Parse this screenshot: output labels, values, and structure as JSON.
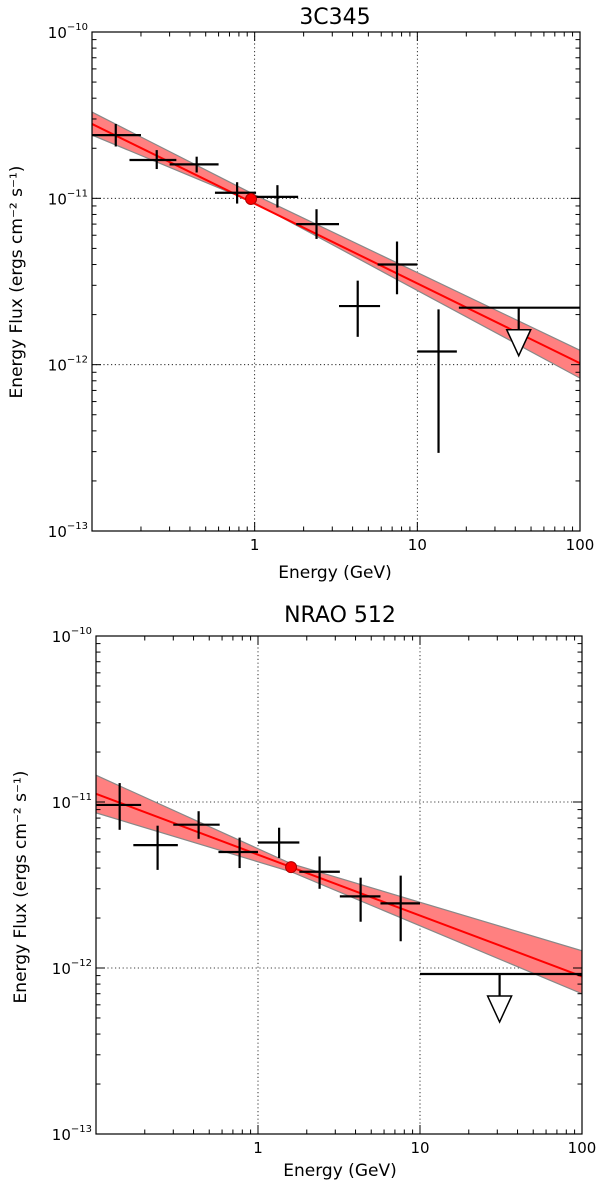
{
  "chart_data": [
    {
      "type": "scatter",
      "title": "3C345",
      "xlabel": "Energy (GeV)",
      "ylabel": "Energy Flux (ergs cm⁻² s⁻¹)",
      "xscale": "log",
      "yscale": "log",
      "xlim": [
        0.1,
        100
      ],
      "ylim": [
        1e-13,
        1e-10
      ],
      "grid": "dotted at decades",
      "x_ticks": [
        {
          "value": 1,
          "label": "1"
        },
        {
          "value": 10,
          "label": "10"
        },
        {
          "value": 100,
          "label": "100"
        }
      ],
      "y_ticks": [
        {
          "value": 1e-10,
          "base": "10",
          "exp": "−10"
        },
        {
          "value": 1e-11,
          "base": "10",
          "exp": "−11"
        },
        {
          "value": 1e-12,
          "base": "10",
          "exp": "−12"
        },
        {
          "value": 1e-13,
          "base": "10",
          "exp": "−13"
        }
      ],
      "model": {
        "type": "power-law",
        "color": "#ff0000",
        "band_color": "#ff8080",
        "line": [
          {
            "x": 0.1,
            "y": 2.8e-11
          },
          {
            "x": 100,
            "y": 1.02e-12
          }
        ],
        "band_upper": [
          {
            "x": 0.1,
            "y": 3.3e-11
          },
          {
            "x": 1,
            "y": 1.05e-11
          },
          {
            "x": 100,
            "y": 1.22e-12
          }
        ],
        "band_lower": [
          {
            "x": 0.1,
            "y": 2.4e-11
          },
          {
            "x": 1,
            "y": 9.4e-12
          },
          {
            "x": 100,
            "y": 8.3e-13
          }
        ],
        "pivot": {
          "x": 0.95,
          "y": 9.9e-12
        }
      },
      "points": [
        {
          "x": 0.14,
          "y": 2.4e-11,
          "xlo": 0.1,
          "xhi": 0.2,
          "ylo": 2.05e-11,
          "yhi": 2.8e-11
        },
        {
          "x": 0.25,
          "y": 1.7e-11,
          "xlo": 0.17,
          "xhi": 0.33,
          "ylo": 1.5e-11,
          "yhi": 1.95e-11
        },
        {
          "x": 0.44,
          "y": 1.6e-11,
          "xlo": 0.3,
          "xhi": 0.6,
          "ylo": 1.43e-11,
          "yhi": 1.78e-11
        },
        {
          "x": 0.78,
          "y": 1.08e-11,
          "xlo": 0.57,
          "xhi": 1.02,
          "ylo": 9.3e-12,
          "yhi": 1.25e-11
        },
        {
          "x": 1.38,
          "y": 1.02e-11,
          "xlo": 1.0,
          "xhi": 1.85,
          "ylo": 8.8e-12,
          "yhi": 1.2e-11
        },
        {
          "x": 2.4,
          "y": 7e-12,
          "xlo": 1.8,
          "xhi": 3.3,
          "ylo": 5.7e-12,
          "yhi": 8.6e-12
        },
        {
          "x": 4.3,
          "y": 2.25e-12,
          "xlo": 3.3,
          "xhi": 5.9,
          "ylo": 1.47e-12,
          "yhi": 3.2e-12
        },
        {
          "x": 7.5,
          "y": 4e-12,
          "xlo": 5.7,
          "xhi": 10.0,
          "ylo": 2.65e-12,
          "yhi": 5.5e-12
        },
        {
          "x": 13.5,
          "y": 1.2e-12,
          "xlo": 10.0,
          "xhi": 17.5,
          "ylo": 2.95e-13,
          "yhi": 2.15e-12
        }
      ],
      "upper_limits": [
        {
          "x": 42,
          "y": 2.2e-12,
          "xlo": 18,
          "xhi": 100
        }
      ]
    },
    {
      "type": "scatter",
      "title": "NRAO 512",
      "xlabel": "Energy (GeV)",
      "ylabel": "Energy Flux (ergs cm⁻² s⁻¹)",
      "xscale": "log",
      "yscale": "log",
      "xlim": [
        0.1,
        100
      ],
      "ylim": [
        1e-13,
        1e-10
      ],
      "grid": "dotted at decades",
      "x_ticks": [
        {
          "value": 1,
          "label": "1"
        },
        {
          "value": 10,
          "label": "10"
        },
        {
          "value": 100,
          "label": "100"
        }
      ],
      "y_ticks": [
        {
          "value": 1e-10,
          "base": "10",
          "exp": "−10"
        },
        {
          "value": 1e-11,
          "base": "10",
          "exp": "−11"
        },
        {
          "value": 1e-12,
          "base": "10",
          "exp": "−12"
        },
        {
          "value": 1e-13,
          "base": "10",
          "exp": "−13"
        }
      ],
      "model": {
        "type": "power-law",
        "color": "#ff0000",
        "band_color": "#ff8080",
        "line": [
          {
            "x": 0.1,
            "y": 1.12e-11
          },
          {
            "x": 100,
            "y": 8.9e-13
          }
        ],
        "band_upper": [
          {
            "x": 0.1,
            "y": 1.45e-11
          },
          {
            "x": 1.6,
            "y": 4.25e-12
          },
          {
            "x": 100,
            "y": 1.27e-12
          }
        ],
        "band_lower": [
          {
            "x": 0.1,
            "y": 8.6e-12
          },
          {
            "x": 1.6,
            "y": 3.8e-12
          },
          {
            "x": 100,
            "y": 7e-13
          }
        ],
        "pivot": {
          "x": 1.6,
          "y": 4.05e-12
        }
      },
      "points": [
        {
          "x": 0.14,
          "y": 9.6e-12,
          "xlo": 0.1,
          "xhi": 0.19,
          "ylo": 6.8e-12,
          "yhi": 1.3e-11
        },
        {
          "x": 0.24,
          "y": 5.5e-12,
          "xlo": 0.17,
          "xhi": 0.32,
          "ylo": 3.9e-12,
          "yhi": 7.2e-12
        },
        {
          "x": 0.43,
          "y": 7.3e-12,
          "xlo": 0.3,
          "xhi": 0.58,
          "ylo": 6e-12,
          "yhi": 8.8e-12
        },
        {
          "x": 0.77,
          "y": 5e-12,
          "xlo": 0.57,
          "xhi": 1.0,
          "ylo": 4e-12,
          "yhi": 6.1e-12
        },
        {
          "x": 1.35,
          "y": 5.7e-12,
          "xlo": 1.0,
          "xhi": 1.8,
          "ylo": 4.6e-12,
          "yhi": 7e-12
        },
        {
          "x": 2.4,
          "y": 3.8e-12,
          "xlo": 1.8,
          "xhi": 3.2,
          "ylo": 3e-12,
          "yhi": 4.7e-12
        },
        {
          "x": 4.3,
          "y": 2.7e-12,
          "xlo": 3.2,
          "xhi": 5.7,
          "ylo": 1.9e-12,
          "yhi": 3.5e-12
        },
        {
          "x": 7.6,
          "y": 2.45e-12,
          "xlo": 5.7,
          "xhi": 10.0,
          "ylo": 1.45e-12,
          "yhi": 3.6e-12
        }
      ],
      "upper_limits": [
        {
          "x": 31,
          "y": 9.2e-13,
          "xlo": 10,
          "xhi": 100
        }
      ]
    }
  ]
}
